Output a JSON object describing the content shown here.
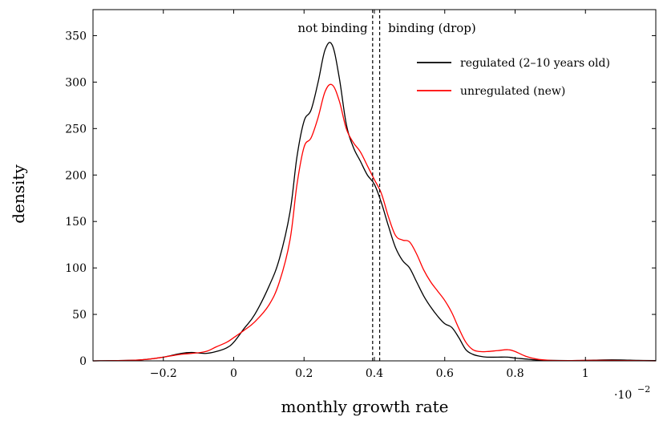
{
  "chart_data": {
    "type": "line",
    "xlabel": "monthly growth rate",
    "ylabel": "density",
    "x_scale_label": "·10",
    "x_scale_exponent": "−2",
    "xlim": [
      -0.4,
      1.2
    ],
    "ylim": [
      0,
      378
    ],
    "xticks": [
      -0.2,
      0,
      0.2,
      0.4,
      0.6,
      0.8,
      1
    ],
    "xtick_labels": [
      "−0.2",
      "0",
      "0.2",
      "0.4",
      "0.6",
      "0.8",
      "1"
    ],
    "yticks": [
      0,
      50,
      100,
      150,
      200,
      250,
      300,
      350
    ],
    "ytick_labels": [
      "0",
      "50",
      "100",
      "150",
      "200",
      "250",
      "300",
      "350"
    ],
    "grid": false,
    "legend_position": "top-right",
    "vlines": [
      {
        "x": 0.395,
        "style": "dashed",
        "color": "#000000"
      },
      {
        "x": 0.415,
        "style": "dashed",
        "color": "#000000"
      }
    ],
    "annotations": [
      {
        "text": "not binding",
        "x": 0.39,
        "y": 358,
        "anchor": "end"
      },
      {
        "text": "binding (drop)",
        "x": 0.43,
        "y": 358,
        "anchor": "start"
      }
    ],
    "series": [
      {
        "name": "regulated (2–10 years old)",
        "color": "#000000",
        "x": [
          -0.4,
          -0.3,
          -0.25,
          -0.2,
          -0.15,
          -0.12,
          -0.08,
          -0.05,
          -0.02,
          0,
          0.03,
          0.06,
          0.1,
          0.13,
          0.16,
          0.18,
          0.2,
          0.22,
          0.24,
          0.26,
          0.28,
          0.3,
          0.32,
          0.34,
          0.36,
          0.38,
          0.4,
          0.42,
          0.44,
          0.46,
          0.48,
          0.5,
          0.52,
          0.54,
          0.56,
          0.58,
          0.6,
          0.62,
          0.64,
          0.66,
          0.68,
          0.7,
          0.72,
          0.75,
          0.78,
          0.8,
          0.83,
          0.86,
          0.9,
          0.95,
          1,
          1.05,
          1.1,
          1.15,
          1.2
        ],
        "y": [
          0,
          0.5,
          1.5,
          4,
          8,
          9,
          8,
          10,
          14,
          20,
          35,
          50,
          80,
          110,
          160,
          220,
          258,
          270,
          300,
          335,
          340,
          305,
          255,
          230,
          215,
          200,
          190,
          170,
          145,
          122,
          108,
          100,
          85,
          70,
          58,
          48,
          40,
          36,
          25,
          12,
          7,
          5,
          4,
          4,
          4,
          3,
          2,
          1,
          0.5,
          0.3,
          0.5,
          1,
          1,
          0.5,
          0.3
        ]
      },
      {
        "name": "unregulated (new)",
        "color": "#ff0000",
        "x": [
          -0.4,
          -0.3,
          -0.25,
          -0.2,
          -0.15,
          -0.12,
          -0.08,
          -0.05,
          -0.02,
          0,
          0.03,
          0.06,
          0.1,
          0.13,
          0.16,
          0.18,
          0.2,
          0.22,
          0.24,
          0.26,
          0.28,
          0.3,
          0.32,
          0.34,
          0.36,
          0.38,
          0.4,
          0.42,
          0.44,
          0.46,
          0.48,
          0.5,
          0.52,
          0.54,
          0.56,
          0.58,
          0.6,
          0.62,
          0.64,
          0.66,
          0.68,
          0.7,
          0.72,
          0.75,
          0.78,
          0.8,
          0.83,
          0.86,
          0.9,
          0.95,
          1,
          1.05,
          1.1,
          1.15,
          1.2
        ],
        "y": [
          0,
          0.5,
          1.5,
          4,
          7,
          8,
          10,
          15,
          20,
          25,
          33,
          42,
          60,
          85,
          130,
          190,
          230,
          240,
          262,
          290,
          297,
          280,
          250,
          235,
          225,
          210,
          195,
          180,
          155,
          135,
          130,
          128,
          115,
          98,
          85,
          75,
          65,
          52,
          35,
          20,
          12,
          10,
          10,
          11,
          12,
          10,
          5,
          2,
          0.5,
          0.3,
          0.5,
          0.5,
          0.3,
          0.2,
          0
        ]
      }
    ]
  }
}
